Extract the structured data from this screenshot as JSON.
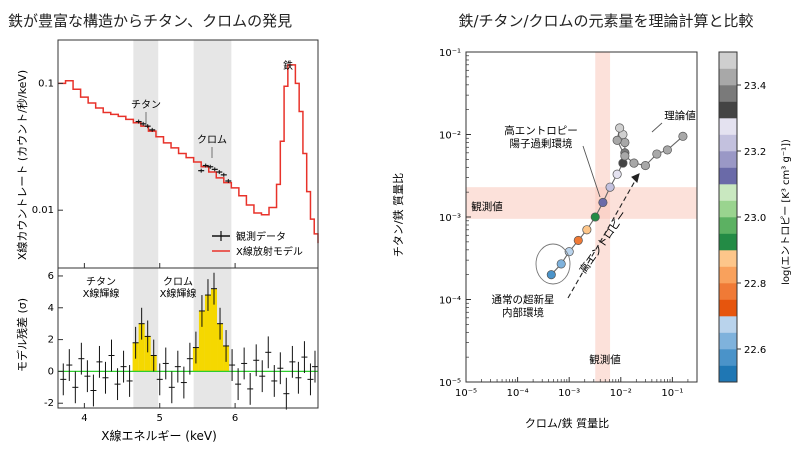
{
  "left": {
    "title": "鉄が豊富な構造からチタン、クロムの発見",
    "xlabel": "X線エネルギー (keV)",
    "top_ylabel": "X線カウントレート (カウント/秒/keV)",
    "bottom_ylabel": "モデル残差 (σ)",
    "legend": {
      "data": "観測データ",
      "model": "X線放射モデル"
    },
    "annotations": {
      "ti": "チタン",
      "cr": "クロム",
      "fe": "鉄",
      "ti_line": "チタン\nX線輝線",
      "cr_line": "クロム\nX線輝線"
    },
    "colors": {
      "model": "#e8322a",
      "data": "#111111",
      "residual_fill": "#f5d800",
      "zero_line": "#2ecc2e",
      "band": "#e6e6e6"
    }
  },
  "right": {
    "title": "鉄/チタン/クロムの元素量を理論計算と比較",
    "xlabel": "クロム/鉄 質量比",
    "ylabel": "チタン/鉄 質量比",
    "annotations": {
      "high_entropy": "高エントロピー\n陽子過剰環境",
      "theory": "理論値",
      "arrow": "高エントロピー",
      "normal": "通常の超新星\n内部環境",
      "observed_h": "観測値",
      "observed_v": "観測値"
    },
    "colorbar": {
      "label": "log(エントロピー [K³ cm³ g⁻¹])",
      "ticks": [
        "22.6",
        "22.8",
        "23.0",
        "23.2",
        "23.4"
      ]
    },
    "colors": {
      "band": "#f9c8bc"
    }
  },
  "chart_data": [
    {
      "type": "line",
      "title": "鉄が豊富な構造からチタン、クロムの発見",
      "xlabel": "X線エネルギー (keV)",
      "ylabel": "X線カウントレート (カウント/秒/keV)",
      "xlim": [
        3.65,
        7.1
      ],
      "ylim": [
        0.0035,
        0.22
      ],
      "yscale": "log",
      "xticks": [
        4,
        5,
        6
      ],
      "yticks": [
        0.01,
        0.1
      ],
      "shaded_ranges": [
        [
          4.65,
          4.98
        ],
        [
          5.45,
          5.95
        ]
      ],
      "series": [
        {
          "name": "X線放射モデル",
          "x": [
            3.65,
            3.75,
            3.85,
            3.95,
            4.05,
            4.15,
            4.25,
            4.35,
            4.45,
            4.55,
            4.65,
            4.75,
            4.85,
            4.95,
            5.05,
            5.15,
            5.25,
            5.35,
            5.45,
            5.55,
            5.65,
            5.75,
            5.85,
            5.95,
            6.05,
            6.15,
            6.25,
            6.35,
            6.45,
            6.55,
            6.6,
            6.65,
            6.7,
            6.75,
            6.8,
            6.85,
            6.9,
            6.95,
            7.0,
            7.05,
            7.1
          ],
          "y": [
            0.1,
            0.105,
            0.09,
            0.078,
            0.07,
            0.064,
            0.059,
            0.057,
            0.055,
            0.052,
            0.049,
            0.046,
            0.042,
            0.038,
            0.034,
            0.031,
            0.028,
            0.026,
            0.024,
            0.022,
            0.02,
            0.018,
            0.0165,
            0.015,
            0.013,
            0.011,
            0.0095,
            0.0092,
            0.0105,
            0.016,
            0.035,
            0.095,
            0.14,
            0.14,
            0.1,
            0.06,
            0.028,
            0.014,
            0.0085,
            0.0065,
            0.0055
          ]
        },
        {
          "name": "観測データ",
          "x": [
            4.72,
            4.78,
            4.84,
            4.9,
            5.55,
            5.61,
            5.67,
            5.73,
            5.79,
            5.85,
            5.91
          ],
          "y": [
            0.05,
            0.048,
            0.046,
            0.043,
            0.0205,
            0.0225,
            0.022,
            0.021,
            0.02,
            0.019,
            0.017
          ]
        }
      ]
    },
    {
      "type": "line",
      "xlabel": "X線エネルギー (keV)",
      "ylabel": "モデル残差 (σ)",
      "xlim": [
        3.65,
        7.1
      ],
      "ylim": [
        -2.3,
        6.5
      ],
      "yticks": [
        -2,
        0,
        2,
        4,
        6
      ],
      "series": [
        {
          "name": "residuals",
          "x": [
            3.72,
            3.8,
            3.88,
            3.96,
            4.04,
            4.12,
            4.2,
            4.28,
            4.36,
            4.44,
            4.52,
            4.6,
            4.68,
            4.76,
            4.84,
            4.92,
            5.0,
            5.08,
            5.16,
            5.24,
            5.32,
            5.4,
            5.48,
            5.56,
            5.64,
            5.72,
            5.8,
            5.88,
            5.96,
            6.04,
            6.12,
            6.2,
            6.28,
            6.36,
            6.44,
            6.52,
            6.6,
            6.68,
            6.76,
            6.84,
            6.92,
            7.0,
            7.06
          ],
          "y": [
            -0.5,
            0.4,
            -1.0,
            0.8,
            -0.3,
            -1.2,
            0.6,
            -0.4,
            1.0,
            -0.8,
            0.3,
            -0.6,
            1.8,
            3.0,
            2.2,
            1.0,
            -0.5,
            0.5,
            -1.0,
            0.3,
            -0.7,
            0.8,
            1.5,
            3.8,
            4.8,
            5.2,
            3.0,
            1.6,
            0.4,
            -0.8,
            0.5,
            -1.1,
            0.7,
            -0.3,
            1.2,
            -0.6,
            0.2,
            -1.4,
            0.6,
            -0.4,
            0.9,
            -0.5,
            0.3
          ]
        }
      ]
    },
    {
      "type": "scatter",
      "title": "鉄/チタン/クロムの元素量を理論計算と比較",
      "xlabel": "クロム/鉄 質量比",
      "ylabel": "チタン/鉄 質量比",
      "xscale": "log",
      "yscale": "log",
      "xlim": [
        1e-05,
        0.3
      ],
      "ylim": [
        1e-05,
        0.1
      ],
      "xticks": [
        "10⁻⁵",
        "10⁻⁴",
        "10⁻³",
        "10⁻²",
        "10⁻¹"
      ],
      "yticks": [
        "10⁻⁵",
        "10⁻⁴",
        "10⁻³",
        "10⁻²",
        "10⁻¹"
      ],
      "observed": {
        "x": 0.0045,
        "x_range": [
          0.0032,
          0.0062
        ],
        "y": 0.0016,
        "y_range": [
          0.00095,
          0.0023
        ]
      },
      "colorbar_range": [
        22.5,
        23.5
      ],
      "series": [
        {
          "name": "theory",
          "x": [
            0.00045,
            0.0007,
            0.001,
            0.0015,
            0.0022,
            0.0032,
            0.0045,
            0.0062,
            0.0085,
            0.011,
            0.012,
            0.012,
            0.011,
            0.0095,
            0.0085,
            0.012,
            0.018,
            0.03,
            0.05,
            0.08,
            0.16
          ],
          "y": [
            0.0002,
            0.00027,
            0.00038,
            0.00052,
            0.0007,
            0.001,
            0.0015,
            0.0023,
            0.0033,
            0.0045,
            0.006,
            0.008,
            0.01,
            0.012,
            0.0085,
            0.0055,
            0.0045,
            0.0042,
            0.0058,
            0.0065,
            0.0095
          ],
          "entropy": [
            22.55,
            22.62,
            22.7,
            22.78,
            22.85,
            22.92,
            23.12,
            23.22,
            23.28,
            23.3,
            23.36,
            23.42,
            23.46,
            23.48,
            23.44,
            23.42,
            23.42,
            23.42,
            23.42,
            23.42,
            23.42
          ]
        }
      ]
    }
  ]
}
